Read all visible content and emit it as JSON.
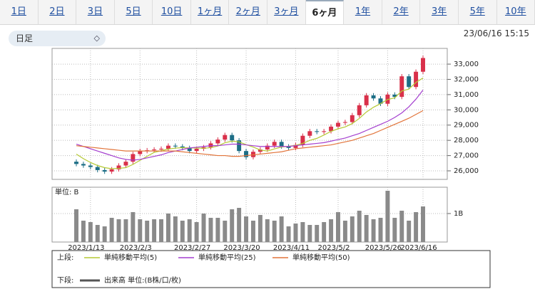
{
  "tabs": {
    "items": [
      "1日",
      "2日",
      "3日",
      "5日",
      "10日",
      "1ヶ月",
      "2ヶ月",
      "3ヶ月",
      "6ヶ月",
      "1年",
      "2年",
      "3年",
      "5年",
      "10年"
    ],
    "selected": 8
  },
  "selector": "日足",
  "timestamp": "23/06/16 15:15",
  "legend": {
    "upper_label": "上段:",
    "lower_label": "下段:"
  },
  "chart_data": [
    {
      "type": "candlestick",
      "open": [
        26600,
        26450,
        26350,
        26250,
        26050,
        25950,
        26100,
        26350,
        26600,
        27100,
        27300,
        27350,
        27400,
        27450,
        27650,
        27600,
        27500,
        27300,
        27450,
        27550,
        27800,
        28050,
        28350,
        28000,
        27300,
        26900,
        27250,
        27400,
        27650,
        27900,
        27600,
        27500,
        27700,
        28300,
        28600,
        28550,
        28600,
        28900,
        29150,
        29200,
        29650,
        30300,
        30950,
        30750,
        30400,
        31000,
        30850,
        32200,
        31500,
        32500
      ],
      "high": [
        26750,
        26600,
        26500,
        26400,
        26200,
        26250,
        26500,
        26750,
        27250,
        27450,
        27500,
        27550,
        27600,
        27800,
        27800,
        27750,
        27650,
        27600,
        27700,
        27950,
        28200,
        28500,
        28500,
        28150,
        27450,
        27400,
        27550,
        27800,
        28050,
        28050,
        27750,
        27850,
        28450,
        28750,
        28750,
        28750,
        29050,
        29300,
        29350,
        29800,
        30450,
        31100,
        31100,
        30900,
        31150,
        31150,
        32350,
        32350,
        32650,
        33550
      ],
      "low": [
        26300,
        26200,
        26100,
        25900,
        25800,
        25800,
        25950,
        26200,
        26450,
        26950,
        27150,
        27200,
        27250,
        27300,
        27450,
        27350,
        27150,
        27150,
        27300,
        27400,
        27650,
        27900,
        27850,
        27150,
        26750,
        26750,
        27100,
        27250,
        27500,
        27450,
        27350,
        27350,
        27550,
        28150,
        28400,
        28400,
        28450,
        28750,
        29000,
        29050,
        29500,
        30150,
        30600,
        30250,
        30250,
        30700,
        30700,
        31350,
        31350,
        32350
      ],
      "close": [
        26450,
        26350,
        26250,
        26050,
        25950,
        26100,
        26350,
        26600,
        27100,
        27300,
        27350,
        27400,
        27450,
        27650,
        27600,
        27500,
        27300,
        27450,
        27550,
        27800,
        28050,
        28350,
        28000,
        27300,
        26900,
        27250,
        27400,
        27650,
        27900,
        27600,
        27500,
        27700,
        28300,
        28600,
        28550,
        28600,
        28900,
        29150,
        29200,
        29650,
        30300,
        30950,
        30750,
        30400,
        31000,
        30850,
        32200,
        31500,
        32500,
        33400
      ],
      "up_color": "#d9304a",
      "down_color": "#1d6e86",
      "series": [
        {
          "name": "単純移動平均(5)",
          "color": "#b5c934",
          "values": [
            27100,
            26800,
            26550,
            26350,
            26210,
            26140,
            26160,
            26210,
            26420,
            26690,
            26950,
            27210,
            27320,
            27430,
            27490,
            27520,
            27500,
            27500,
            27480,
            27520,
            27630,
            27840,
            27950,
            27900,
            27720,
            27560,
            27370,
            27300,
            27440,
            27560,
            27610,
            27670,
            27800,
            28000,
            28130,
            28350,
            28590,
            28760,
            28880,
            29100,
            29440,
            29860,
            30170,
            30410,
            30680,
            30790,
            31240,
            31360,
            31800,
            32090
          ]
        },
        {
          "name": "単純移動平均(25)",
          "color": "#a43fcf",
          "values": [
            27750,
            27600,
            27450,
            27300,
            27150,
            27000,
            26850,
            26750,
            26700,
            26750,
            26850,
            26950,
            27050,
            27200,
            27300,
            27400,
            27500,
            27550,
            27600,
            27650,
            27650,
            27700,
            27750,
            27750,
            27700,
            27650,
            27600,
            27600,
            27600,
            27600,
            27600,
            27650,
            27700,
            27750,
            27800,
            27850,
            27950,
            28050,
            28150,
            28300,
            28450,
            28650,
            28850,
            29050,
            29250,
            29500,
            29800,
            30200,
            30700,
            31300
          ]
        },
        {
          "name": "単純移動平均(50)",
          "color": "#e2743a",
          "values": [
            27650,
            27600,
            27550,
            27500,
            27450,
            27400,
            27350,
            27300,
            27300,
            27300,
            27300,
            27300,
            27300,
            27300,
            27300,
            27250,
            27200,
            27150,
            27100,
            27050,
            27000,
            27000,
            26950,
            26950,
            27000,
            27050,
            27100,
            27150,
            27200,
            27250,
            27350,
            27450,
            27500,
            27550,
            27600,
            27650,
            27700,
            27800,
            27900,
            28000,
            28150,
            28300,
            28450,
            28650,
            28850,
            29050,
            29250,
            29450,
            29700,
            29950
          ]
        }
      ],
      "ylim": [
        25440,
        34030
      ],
      "yticks": [
        {
          "value": 26000,
          "label": "26,000"
        },
        {
          "value": 27000,
          "label": "27,000"
        },
        {
          "value": 28000,
          "label": "28,000"
        },
        {
          "value": 29000,
          "label": "29,000"
        },
        {
          "value": 30000,
          "label": "30,000"
        },
        {
          "value": 31000,
          "label": "31,000"
        },
        {
          "value": 32000,
          "label": "32,000"
        },
        {
          "value": 33000,
          "label": "33,000"
        }
      ],
      "grid": true
    },
    {
      "type": "bar",
      "unit_label": "単位: B",
      "name": "出来高 単位:(B株/口/枚)",
      "color": "#8a8a8a",
      "categories": [
        null,
        null,
        "2023/1/13",
        null,
        null,
        null,
        null,
        null,
        null,
        "2023/2/3",
        null,
        null,
        null,
        null,
        null,
        null,
        null,
        "2023/2/27",
        null,
        null,
        null,
        null,
        null,
        null,
        "2023/3/20",
        null,
        null,
        null,
        null,
        null,
        null,
        "2023/4/11",
        null,
        null,
        null,
        null,
        null,
        "2023/5/2",
        null,
        null,
        null,
        null,
        null,
        null,
        "2023/5/26",
        null,
        null,
        null,
        null,
        "2023/6/16"
      ],
      "values": [
        1.15,
        0.75,
        0.7,
        0.6,
        0.55,
        0.85,
        0.8,
        0.8,
        1.05,
        0.8,
        0.75,
        0.8,
        0.8,
        1.0,
        0.9,
        0.75,
        0.8,
        0.7,
        1.0,
        0.85,
        0.85,
        0.75,
        1.15,
        1.2,
        0.9,
        0.75,
        0.95,
        0.8,
        0.75,
        0.9,
        0.55,
        0.65,
        0.7,
        0.6,
        0.6,
        0.7,
        0.8,
        1.05,
        0.75,
        0.9,
        1.1,
        0.95,
        0.8,
        0.85,
        1.8,
        0.85,
        1.1,
        0.75,
        1.05,
        1.25
      ],
      "ylim": [
        0,
        1.925
      ],
      "yticks": [
        {
          "value": 1,
          "label": "1B"
        }
      ],
      "grid": true
    }
  ]
}
